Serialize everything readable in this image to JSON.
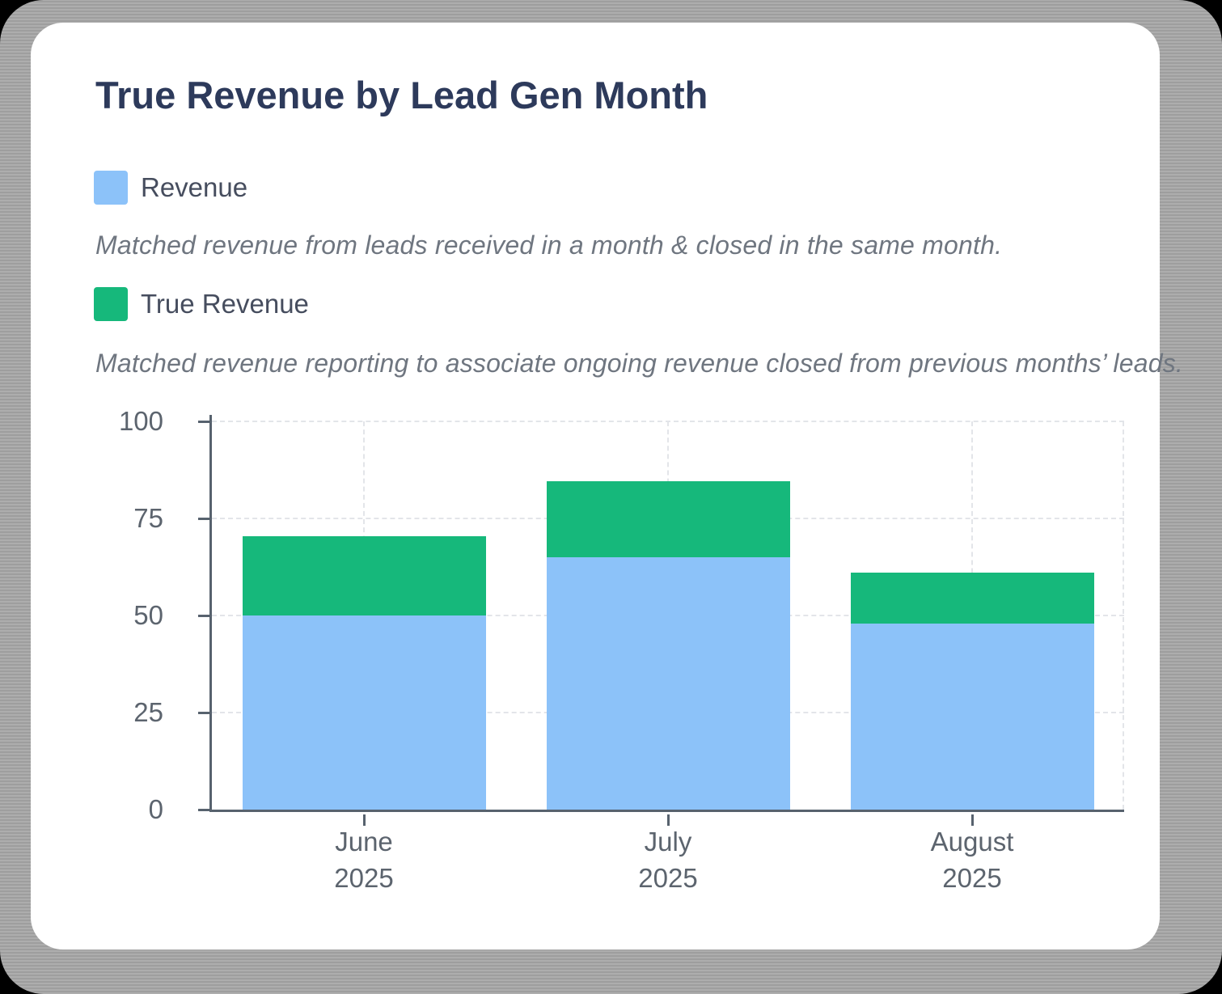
{
  "card": {
    "title": "True Revenue by Lead Gen Month"
  },
  "legend": [
    {
      "label": "Revenue",
      "color": "#8CC2F9",
      "swatch_icon": "blue-square-swatch",
      "description": "Matched revenue from leads received in a month & closed in the same month."
    },
    {
      "label": "True Revenue",
      "color": "#16B87B",
      "swatch_icon": "green-square-swatch",
      "description": "Matched revenue reporting to associate ongoing revenue closed from previous months’ leads."
    }
  ],
  "chart_data": {
    "type": "bar",
    "stacked": true,
    "title": "True Revenue by Lead Gen Month",
    "categories": [
      "June 2025",
      "July 2025",
      "August 2025"
    ],
    "category_lines": [
      [
        "June",
        "2025"
      ],
      [
        "July",
        "2025"
      ],
      [
        "August",
        "2025"
      ]
    ],
    "series": [
      {
        "name": "Revenue",
        "color": "#8CC2F9",
        "values": [
          50,
          65,
          48
        ]
      },
      {
        "name": "True Revenue",
        "color": "#16B87B",
        "values": [
          20.5,
          19.5,
          13
        ]
      }
    ],
    "stack_totals": [
      70.5,
      84.5,
      61
    ],
    "xlabel": "",
    "ylabel": "",
    "ylim": [
      0,
      100
    ],
    "yticks": [
      0,
      25,
      50,
      75,
      100
    ],
    "grid": "dashed horizontal and vertical at category centers",
    "legend_position": "top-left, above chart"
  },
  "colors": {
    "axis": "#57626E",
    "grid": "#E3E5E9",
    "title": "#2D3A5B",
    "legend_label": "#464D5E",
    "description": "#6F7680",
    "tick_label": "#5C646E",
    "frame": "#A7A7A7",
    "card_background": "#FFFFFF",
    "revenue_bar": "#8CC2F9",
    "true_revenue_bar": "#16B87B"
  }
}
